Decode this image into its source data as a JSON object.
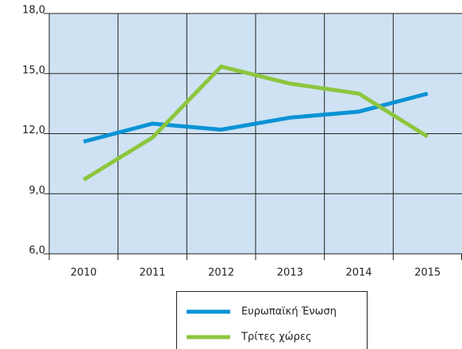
{
  "chart_data": {
    "type": "line",
    "categories": [
      "2010",
      "2011",
      "2012",
      "2013",
      "2014",
      "2015"
    ],
    "series": [
      {
        "name": "Ευρωπαϊκή Ένωση",
        "color": "#0a93d5",
        "values": [
          11.6,
          12.5,
          12.2,
          12.8,
          13.1,
          14.0
        ]
      },
      {
        "name": "Τρίτες χώρες",
        "color": "#8cc63e",
        "values": [
          9.7,
          11.8,
          15.35,
          14.5,
          14.0,
          11.85
        ]
      }
    ],
    "ylim": [
      6,
      18
    ],
    "yticks": [
      {
        "value": 6,
        "label": "6,0"
      },
      {
        "value": 9,
        "label": "9,0"
      },
      {
        "value": 12,
        "label": "12,0"
      },
      {
        "value": 15,
        "label": "15,0"
      },
      {
        "value": 18,
        "label": "18,0"
      }
    ],
    "grid": true,
    "plot_background": "#cfe2f3",
    "legend": "bottom"
  }
}
